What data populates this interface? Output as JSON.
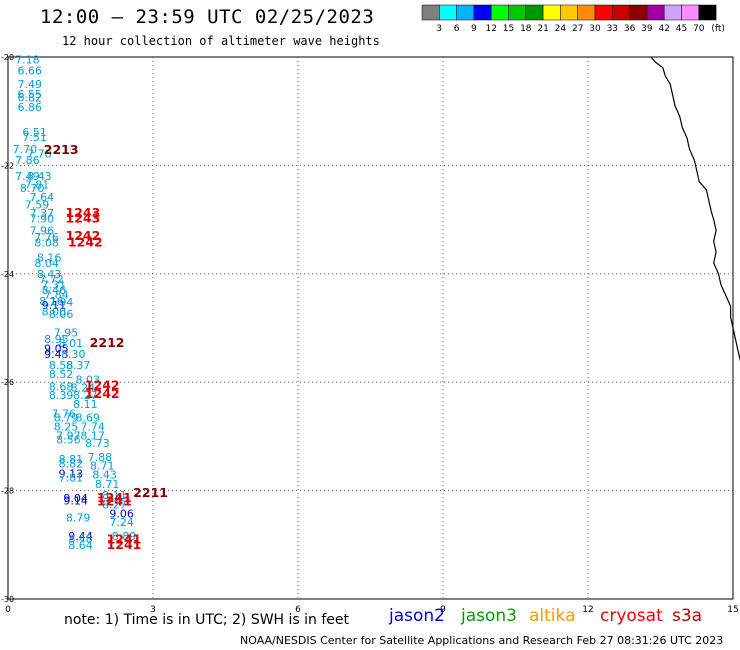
{
  "header": {
    "title": "12:00 – 23:59 UTC 02/25/2023",
    "subtitle": "12 hour collection of altimeter wave heights"
  },
  "colorbar": {
    "labels": [
      "3",
      "6",
      "9",
      "12",
      "15",
      "18",
      "21",
      "24",
      "27",
      "30",
      "33",
      "36",
      "39",
      "42",
      "45",
      "70",
      "(ft)"
    ],
    "colors": [
      "#7f7f7f",
      "#00ffff",
      "#00b4ff",
      "#0000ff",
      "#00ff00",
      "#00c800",
      "#009600",
      "#ffff00",
      "#ffc800",
      "#ff8c00",
      "#ff0000",
      "#c80000",
      "#8c0000",
      "#a000a0",
      "#d2a0ff",
      "#ff8cff",
      "#000000"
    ]
  },
  "axes": {
    "x_ticks": [
      "0",
      "3",
      "6",
      "9",
      "12",
      "15"
    ],
    "y_ticks": [
      "-20",
      "-22",
      "-24",
      "-26",
      "-28",
      "-30"
    ]
  },
  "note": "note:  1) Time is in UTC; 2) SWH is in feet",
  "satellites": [
    {
      "name": "jason2",
      "color": "#0000dd"
    },
    {
      "name": "jason3",
      "color": "#00a000"
    },
    {
      "name": "altika",
      "color": "#ff9900"
    },
    {
      "name": "cryosat",
      "color": "#ee0000"
    },
    {
      "name": "s3a",
      "color": "#cc0000"
    }
  ],
  "footer": "NOAA/NESDIS Center for Satellite Applications and Research    Feb 27 08:31:26 UTC 2023",
  "chart_data": {
    "type": "scatter",
    "title": "12 hour collection of altimeter wave heights",
    "xlabel": "",
    "ylabel": "",
    "xlim": [
      0,
      15
    ],
    "ylim": [
      -30,
      -20
    ],
    "grid": true,
    "wave_labels": [
      {
        "lon": 0.4,
        "lat": -20.05,
        "text": "7.18",
        "color": "#00a0d8"
      },
      {
        "lon": 0.45,
        "lat": -20.25,
        "text": "6.66",
        "color": "#00a0d8"
      },
      {
        "lon": 0.45,
        "lat": -20.5,
        "text": "7.49",
        "color": "#00a0d8"
      },
      {
        "lon": 0.45,
        "lat": -20.68,
        "text": "6.55",
        "color": "#00a0d8"
      },
      {
        "lon": 0.45,
        "lat": -20.75,
        "text": "6.82",
        "color": "#00a0d8"
      },
      {
        "lon": 0.45,
        "lat": -20.92,
        "text": "6.86",
        "color": "#00a0d8"
      },
      {
        "lon": 0.55,
        "lat": -21.38,
        "text": "6.51",
        "color": "#00a0d8"
      },
      {
        "lon": 0.55,
        "lat": -21.48,
        "text": "7.51",
        "color": "#00a0d8"
      },
      {
        "lon": 0.35,
        "lat": -21.7,
        "text": "7.70",
        "color": "#00a0d8"
      },
      {
        "lon": 0.65,
        "lat": -21.78,
        "text": "7.78",
        "color": "#00a0d8"
      },
      {
        "lon": 0.4,
        "lat": -21.9,
        "text": "7.86",
        "color": "#00a0d8"
      },
      {
        "lon": 1.1,
        "lat": -21.72,
        "text": "2213",
        "color": "#800000"
      },
      {
        "lon": 0.4,
        "lat": -22.2,
        "text": "7.49",
        "color": "#00a0d8"
      },
      {
        "lon": 0.65,
        "lat": -22.2,
        "text": "8.43",
        "color": "#00a0d8"
      },
      {
        "lon": 0.6,
        "lat": -22.35,
        "text": "7.81",
        "color": "#00a0d8"
      },
      {
        "lon": 0.5,
        "lat": -22.42,
        "text": "8.70",
        "color": "#00a0d8"
      },
      {
        "lon": 0.7,
        "lat": -22.58,
        "text": "7.64",
        "color": "#00a0d8"
      },
      {
        "lon": 0.6,
        "lat": -22.72,
        "text": "7.59",
        "color": "#00a0d8"
      },
      {
        "lon": 0.7,
        "lat": -22.88,
        "text": "7.37",
        "color": "#00a0d8"
      },
      {
        "lon": 0.7,
        "lat": -22.98,
        "text": "7.90",
        "color": "#00a0d8"
      },
      {
        "lon": 0.7,
        "lat": -23.2,
        "text": "7.96",
        "color": "#00a0d8"
      },
      {
        "lon": 0.8,
        "lat": -23.32,
        "text": "7.76",
        "color": "#00a0d8"
      },
      {
        "lon": 0.8,
        "lat": -23.42,
        "text": "8.08",
        "color": "#00a0d8"
      },
      {
        "lon": 1.55,
        "lat": -22.88,
        "text": "1243",
        "color": "#dd0000"
      },
      {
        "lon": 1.55,
        "lat": -22.98,
        "text": "1243",
        "color": "#dd0000"
      },
      {
        "lon": 1.55,
        "lat": -23.3,
        "text": "1242",
        "color": "#dd0000"
      },
      {
        "lon": 1.6,
        "lat": -23.42,
        "text": "1242",
        "color": "#dd0000"
      },
      {
        "lon": 0.85,
        "lat": -23.7,
        "text": "8.16",
        "color": "#00a0d8"
      },
      {
        "lon": 0.8,
        "lat": -23.8,
        "text": "8.04",
        "color": "#00a0d8"
      },
      {
        "lon": 0.85,
        "lat": -24.0,
        "text": "8.43",
        "color": "#00a0d8"
      },
      {
        "lon": 0.9,
        "lat": -24.1,
        "text": "7.72",
        "color": "#00a0d8"
      },
      {
        "lon": 0.95,
        "lat": -24.2,
        "text": "7.31",
        "color": "#00a0d8"
      },
      {
        "lon": 0.95,
        "lat": -24.3,
        "text": "8.46",
        "color": "#00a0d8"
      },
      {
        "lon": 1.0,
        "lat": -24.38,
        "text": "7.84",
        "color": "#00a0d8"
      },
      {
        "lon": 0.9,
        "lat": -24.5,
        "text": "8.16",
        "color": "#00a0d8"
      },
      {
        "lon": 0.95,
        "lat": -24.58,
        "text": "9.11",
        "color": "#0000cc"
      },
      {
        "lon": 1.1,
        "lat": -24.52,
        "text": "7.94",
        "color": "#00a0d8"
      },
      {
        "lon": 0.95,
        "lat": -24.7,
        "text": "8.00",
        "color": "#00a0d8"
      },
      {
        "lon": 1.1,
        "lat": -24.74,
        "text": "8.06",
        "color": "#00a0d8"
      },
      {
        "lon": 1.2,
        "lat": -25.08,
        "text": "7.95",
        "color": "#00a0d8"
      },
      {
        "lon": 1.0,
        "lat": -25.2,
        "text": "8.95",
        "color": "#00a0d8"
      },
      {
        "lon": 1.3,
        "lat": -25.28,
        "text": "8.01",
        "color": "#00a0d8"
      },
      {
        "lon": 1.0,
        "lat": -25.38,
        "text": "9.05",
        "color": "#0000cc"
      },
      {
        "lon": 1.0,
        "lat": -25.48,
        "text": "9.43",
        "color": "#0000cc"
      },
      {
        "lon": 1.35,
        "lat": -25.48,
        "text": "8.30",
        "color": "#00a0d8"
      },
      {
        "lon": 2.05,
        "lat": -25.28,
        "text": "2212",
        "color": "#800000"
      },
      {
        "lon": 1.1,
        "lat": -25.68,
        "text": "8.58",
        "color": "#00a0d8"
      },
      {
        "lon": 1.45,
        "lat": -25.68,
        "text": "8.37",
        "color": "#00a0d8"
      },
      {
        "lon": 1.1,
        "lat": -25.85,
        "text": "8.52",
        "color": "#00a0d8"
      },
      {
        "lon": 1.65,
        "lat": -25.95,
        "text": "8.03",
        "color": "#00a0d8"
      },
      {
        "lon": 1.1,
        "lat": -26.08,
        "text": "8.68",
        "color": "#00a0d8"
      },
      {
        "lon": 1.55,
        "lat": -26.1,
        "text": "8.24",
        "color": "#00a0d8"
      },
      {
        "lon": 1.95,
        "lat": -26.06,
        "text": "1242",
        "color": "#dd0000"
      },
      {
        "lon": 1.1,
        "lat": -26.24,
        "text": "8.39",
        "color": "#00a0d8"
      },
      {
        "lon": 1.6,
        "lat": -26.24,
        "text": "8.27",
        "color": "#00a0d8"
      },
      {
        "lon": 1.95,
        "lat": -26.22,
        "text": "1242",
        "color": "#dd0000"
      },
      {
        "lon": 1.6,
        "lat": -26.4,
        "text": "8.11",
        "color": "#00a0d8"
      },
      {
        "lon": 1.15,
        "lat": -26.58,
        "text": "7.76",
        "color": "#00a0d8"
      },
      {
        "lon": 1.2,
        "lat": -26.65,
        "text": "8.79",
        "color": "#00a0d8"
      },
      {
        "lon": 1.65,
        "lat": -26.65,
        "text": "8.69",
        "color": "#00a0d8"
      },
      {
        "lon": 1.2,
        "lat": -26.82,
        "text": "8.25",
        "color": "#00a0d8"
      },
      {
        "lon": 1.75,
        "lat": -26.82,
        "text": "7.74",
        "color": "#00a0d8"
      },
      {
        "lon": 1.25,
        "lat": -26.98,
        "text": "7.97",
        "color": "#00a0d8"
      },
      {
        "lon": 1.75,
        "lat": -26.98,
        "text": "8.17",
        "color": "#00a0d8"
      },
      {
        "lon": 1.25,
        "lat": -27.06,
        "text": "8.56",
        "color": "#00a0d8"
      },
      {
        "lon": 1.85,
        "lat": -27.12,
        "text": "8.73",
        "color": "#00a0d8"
      },
      {
        "lon": 1.3,
        "lat": -27.42,
        "text": "8.81",
        "color": "#00a0d8"
      },
      {
        "lon": 1.9,
        "lat": -27.38,
        "text": "7.88",
        "color": "#00a0d8"
      },
      {
        "lon": 1.3,
        "lat": -27.5,
        "text": "8.82",
        "color": "#00a0d8"
      },
      {
        "lon": 1.95,
        "lat": -27.54,
        "text": "8.71",
        "color": "#00a0d8"
      },
      {
        "lon": 1.3,
        "lat": -27.68,
        "text": "9.13",
        "color": "#0000cc"
      },
      {
        "lon": 1.3,
        "lat": -27.76,
        "text": "7.81",
        "color": "#00a0d8"
      },
      {
        "lon": 2.0,
        "lat": -27.7,
        "text": "8.43",
        "color": "#00a0d8"
      },
      {
        "lon": 2.05,
        "lat": -27.88,
        "text": "8.71",
        "color": "#00a0d8"
      },
      {
        "lon": 1.4,
        "lat": -28.14,
        "text": "9.04",
        "color": "#0000cc"
      },
      {
        "lon": 1.4,
        "lat": -28.18,
        "text": "9.14",
        "color": "#0000cc"
      },
      {
        "lon": 2.2,
        "lat": -28.08,
        "text": "8.11",
        "color": "#00a0d8"
      },
      {
        "lon": 2.2,
        "lat": -28.14,
        "text": "1241",
        "color": "#dd0000"
      },
      {
        "lon": 2.2,
        "lat": -28.2,
        "text": "1241",
        "color": "#dd0000"
      },
      {
        "lon": 2.2,
        "lat": -28.26,
        "text": "8.27",
        "color": "#00a0d8"
      },
      {
        "lon": 2.95,
        "lat": -28.04,
        "text": "2211",
        "color": "#800000"
      },
      {
        "lon": 2.35,
        "lat": -28.42,
        "text": "9.06",
        "color": "#0000cc"
      },
      {
        "lon": 1.45,
        "lat": -28.5,
        "text": "8.79",
        "color": "#00a0d8"
      },
      {
        "lon": 2.35,
        "lat": -28.58,
        "text": "7.24",
        "color": "#00a0d8"
      },
      {
        "lon": 1.5,
        "lat": -28.84,
        "text": "9.44",
        "color": "#0000cc"
      },
      {
        "lon": 1.5,
        "lat": -28.88,
        "text": "8.48",
        "color": "#00a0d8"
      },
      {
        "lon": 2.4,
        "lat": -28.84,
        "text": "8.89",
        "color": "#00a0d8"
      },
      {
        "lon": 2.4,
        "lat": -28.9,
        "text": "1241",
        "color": "#dd0000"
      },
      {
        "lon": 1.5,
        "lat": -29.0,
        "text": "8.64",
        "color": "#00a0d8"
      },
      {
        "lon": 2.4,
        "lat": -29.0,
        "text": "1241",
        "color": "#dd0000"
      }
    ],
    "coastline": [
      [
        13.3,
        -20.0
      ],
      [
        13.4,
        -20.1
      ],
      [
        13.55,
        -20.2
      ],
      [
        13.6,
        -20.35
      ],
      [
        13.7,
        -20.5
      ],
      [
        13.75,
        -20.7
      ],
      [
        13.8,
        -20.9
      ],
      [
        13.9,
        -21.1
      ],
      [
        13.95,
        -21.3
      ],
      [
        14.05,
        -21.5
      ],
      [
        14.1,
        -21.7
      ],
      [
        14.2,
        -21.9
      ],
      [
        14.25,
        -22.1
      ],
      [
        14.3,
        -22.3
      ],
      [
        14.45,
        -22.45
      ],
      [
        14.5,
        -22.65
      ],
      [
        14.55,
        -22.85
      ],
      [
        14.6,
        -23.0
      ],
      [
        14.65,
        -23.2
      ],
      [
        14.6,
        -23.4
      ],
      [
        14.65,
        -23.6
      ],
      [
        14.6,
        -23.8
      ],
      [
        14.7,
        -24.0
      ],
      [
        14.75,
        -24.2
      ],
      [
        14.85,
        -24.4
      ],
      [
        14.95,
        -24.6
      ],
      [
        14.95,
        -24.8
      ],
      [
        15.0,
        -25.0
      ],
      [
        15.05,
        -25.2
      ],
      [
        15.1,
        -25.4
      ],
      [
        15.15,
        -25.6
      ],
      [
        15.2,
        -25.8
      ],
      [
        15.25,
        -26.0
      ],
      [
        15.25,
        -26.1
      ]
    ]
  }
}
